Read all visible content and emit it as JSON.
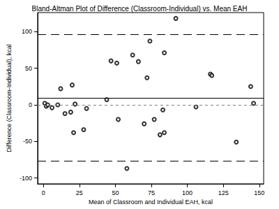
{
  "chart_data": {
    "type": "scatter",
    "title": "Bland-Altman Plot of Difference (Classroom-Individual) vs. Mean EAH",
    "x_label": "Mean of Classroom and Individual EAH, kcal",
    "y_label": "Difference (Classroom-Individual), kcal",
    "x": [
      1,
      2,
      3,
      6,
      10,
      12,
      15,
      19,
      20,
      21,
      22,
      28,
      30,
      44,
      47,
      51,
      52,
      58,
      62,
      66,
      70,
      72,
      74,
      77,
      81,
      83,
      84,
      84,
      92,
      106,
      116,
      117,
      134,
      144,
      146
    ],
    "values": [
      2,
      -2,
      0,
      -4,
      0,
      22,
      -12,
      -10,
      27,
      -38,
      1,
      -34,
      -5,
      7,
      60,
      57,
      -20,
      -87,
      68,
      59,
      -26,
      37,
      87,
      -20,
      -41,
      -7,
      71,
      -38,
      118,
      -3,
      42,
      40,
      -51,
      25,
      2
    ],
    "color": "#000000",
    "marker": "circle_open",
    "hlines": [
      {
        "value": 9,
        "line_style": "solid",
        "color": "#000000"
      },
      {
        "value": 0,
        "line_style": "dashed",
        "color": "#808080"
      },
      {
        "value": 96,
        "line_style": "longdash",
        "color": "#000000"
      },
      {
        "value": -77,
        "line_style": "longdash",
        "color": "#000000"
      }
    ],
    "xlim": [
      -4,
      153
    ],
    "xticks": [
      0,
      25,
      50,
      75,
      100,
      125,
      150
    ],
    "ylim": [
      -108,
      126
    ],
    "yticks": [
      -100,
      -50,
      0,
      50,
      100
    ],
    "grid": false
  }
}
